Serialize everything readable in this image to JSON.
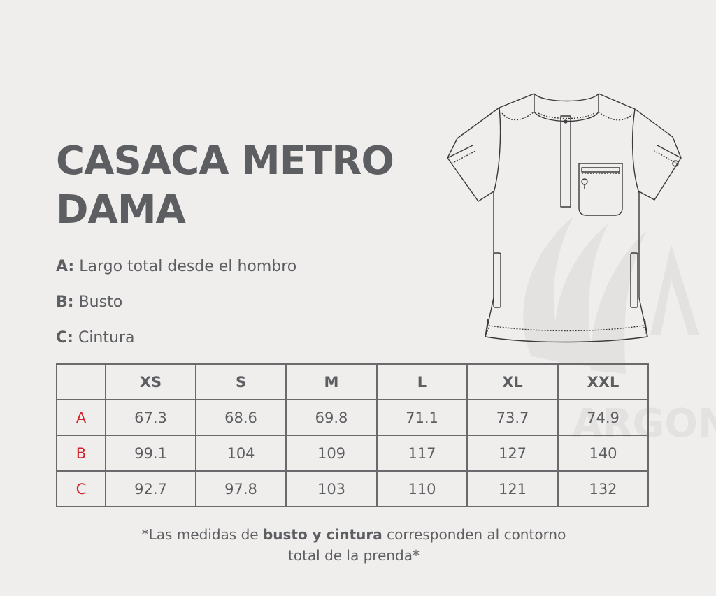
{
  "title": {
    "line1": "CASACA METRO",
    "line2": "DAMA"
  },
  "legend": [
    {
      "key": "A:",
      "text": "Largo total desde el hombro"
    },
    {
      "key": "B:",
      "text": "Busto"
    },
    {
      "key": "C:",
      "text": "Cintura"
    }
  ],
  "table": {
    "headers": [
      "XS",
      "S",
      "M",
      "L",
      "XL",
      "XXL"
    ],
    "rows": [
      {
        "label": "A",
        "values": [
          "67.3",
          "68.6",
          "69.8",
          "71.1",
          "73.7",
          "74.9"
        ]
      },
      {
        "label": "B",
        "values": [
          "99.1",
          "104",
          "109",
          "117",
          "127",
          "140"
        ]
      },
      {
        "label": "C",
        "values": [
          "92.7",
          "97.8",
          "103",
          "110",
          "121",
          "132"
        ]
      }
    ]
  },
  "note": {
    "part1": "*Las medidas de ",
    "bold": "busto y cintura",
    "part2": " corresponden al contorno",
    "line2": "total de la prenda*"
  },
  "watermark": {
    "text": "ARGON",
    "icon": "argon-logo-icon"
  },
  "colors": {
    "background": "#efeeed",
    "text": "#5d5e61",
    "accent": "#d1232a"
  }
}
